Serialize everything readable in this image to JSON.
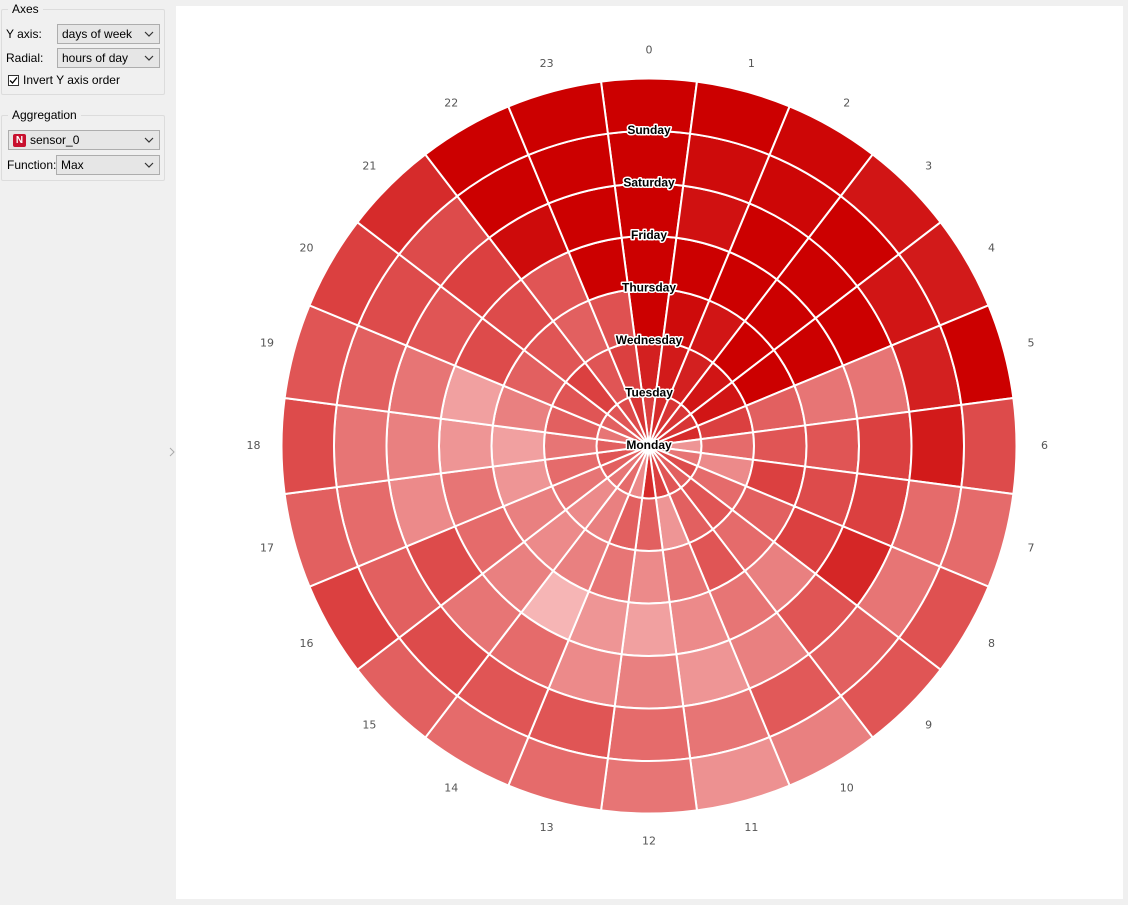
{
  "axes": {
    "legend": "Axes",
    "y_axis_label": "Y axis:",
    "y_axis_value": "days of week",
    "radial_label": "Radial:",
    "radial_value": "hours of day",
    "invert_label": "Invert Y axis order",
    "invert_checked": true
  },
  "aggregation": {
    "legend": "Aggregation",
    "variable_badge": "N",
    "variable_value": "sensor_0",
    "function_label": "Function:",
    "function_value": "Max"
  },
  "chart_data": {
    "type": "heatmap",
    "layout": "polar",
    "radial_categories": [
      "0",
      "1",
      "2",
      "3",
      "4",
      "5",
      "6",
      "7",
      "8",
      "9",
      "10",
      "11",
      "12",
      "13",
      "14",
      "15",
      "16",
      "17",
      "18",
      "19",
      "20",
      "21",
      "22",
      "23"
    ],
    "ring_categories": [
      "Monday",
      "Tuesday",
      "Wednesday",
      "Thursday",
      "Friday",
      "Saturday",
      "Sunday"
    ],
    "ring_order": "Monday innermost, Sunday outermost",
    "color_scale": {
      "low": "#fdd5d5",
      "high": "#cc0000"
    },
    "values": [
      [
        0.7,
        0.85,
        1.0,
        1.0,
        1.0,
        1.0,
        1.0
      ],
      [
        0.8,
        0.88,
        0.95,
        1.0,
        0.92,
        0.95,
        1.0
      ],
      [
        0.75,
        0.85,
        0.9,
        1.0,
        1.0,
        0.97,
        0.97
      ],
      [
        0.75,
        0.9,
        1.0,
        1.0,
        1.0,
        1.0,
        0.9
      ],
      [
        0.75,
        0.9,
        1.0,
        1.0,
        1.0,
        0.9,
        0.88
      ],
      [
        0.8,
        0.7,
        0.55,
        0.45,
        0.45,
        0.85,
        1.0
      ],
      [
        0.3,
        0.5,
        0.6,
        0.6,
        0.7,
        0.88,
        0.65
      ],
      [
        0.45,
        0.35,
        0.7,
        0.65,
        0.7,
        0.5,
        0.5
      ],
      [
        0.65,
        0.5,
        0.55,
        0.7,
        0.82,
        0.45,
        0.62
      ],
      [
        0.55,
        0.6,
        0.5,
        0.4,
        0.6,
        0.55,
        0.6
      ],
      [
        0.6,
        0.55,
        0.6,
        0.45,
        0.4,
        0.58,
        0.4
      ],
      [
        0.7,
        0.3,
        0.45,
        0.35,
        0.3,
        0.45,
        0.32
      ],
      [
        0.8,
        0.55,
        0.35,
        0.25,
        0.4,
        0.5,
        0.45
      ],
      [
        0.35,
        0.55,
        0.45,
        0.3,
        0.35,
        0.6,
        0.5
      ],
      [
        0.5,
        0.4,
        0.4,
        0.15,
        0.5,
        0.6,
        0.5
      ],
      [
        0.45,
        0.35,
        0.35,
        0.4,
        0.45,
        0.65,
        0.55
      ],
      [
        0.55,
        0.45,
        0.4,
        0.5,
        0.65,
        0.55,
        0.7
      ],
      [
        0.6,
        0.5,
        0.3,
        0.45,
        0.35,
        0.5,
        0.55
      ],
      [
        0.55,
        0.45,
        0.25,
        0.3,
        0.4,
        0.45,
        0.65
      ],
      [
        0.45,
        0.55,
        0.4,
        0.25,
        0.45,
        0.55,
        0.6
      ],
      [
        0.55,
        0.6,
        0.55,
        0.65,
        0.6,
        0.65,
        0.7
      ],
      [
        0.6,
        0.7,
        0.6,
        0.65,
        0.7,
        0.65,
        0.8
      ],
      [
        0.65,
        0.6,
        0.55,
        0.6,
        0.95,
        1.0,
        1.0
      ],
      [
        0.75,
        0.7,
        0.62,
        1.0,
        1.0,
        1.0,
        1.0
      ]
    ]
  }
}
